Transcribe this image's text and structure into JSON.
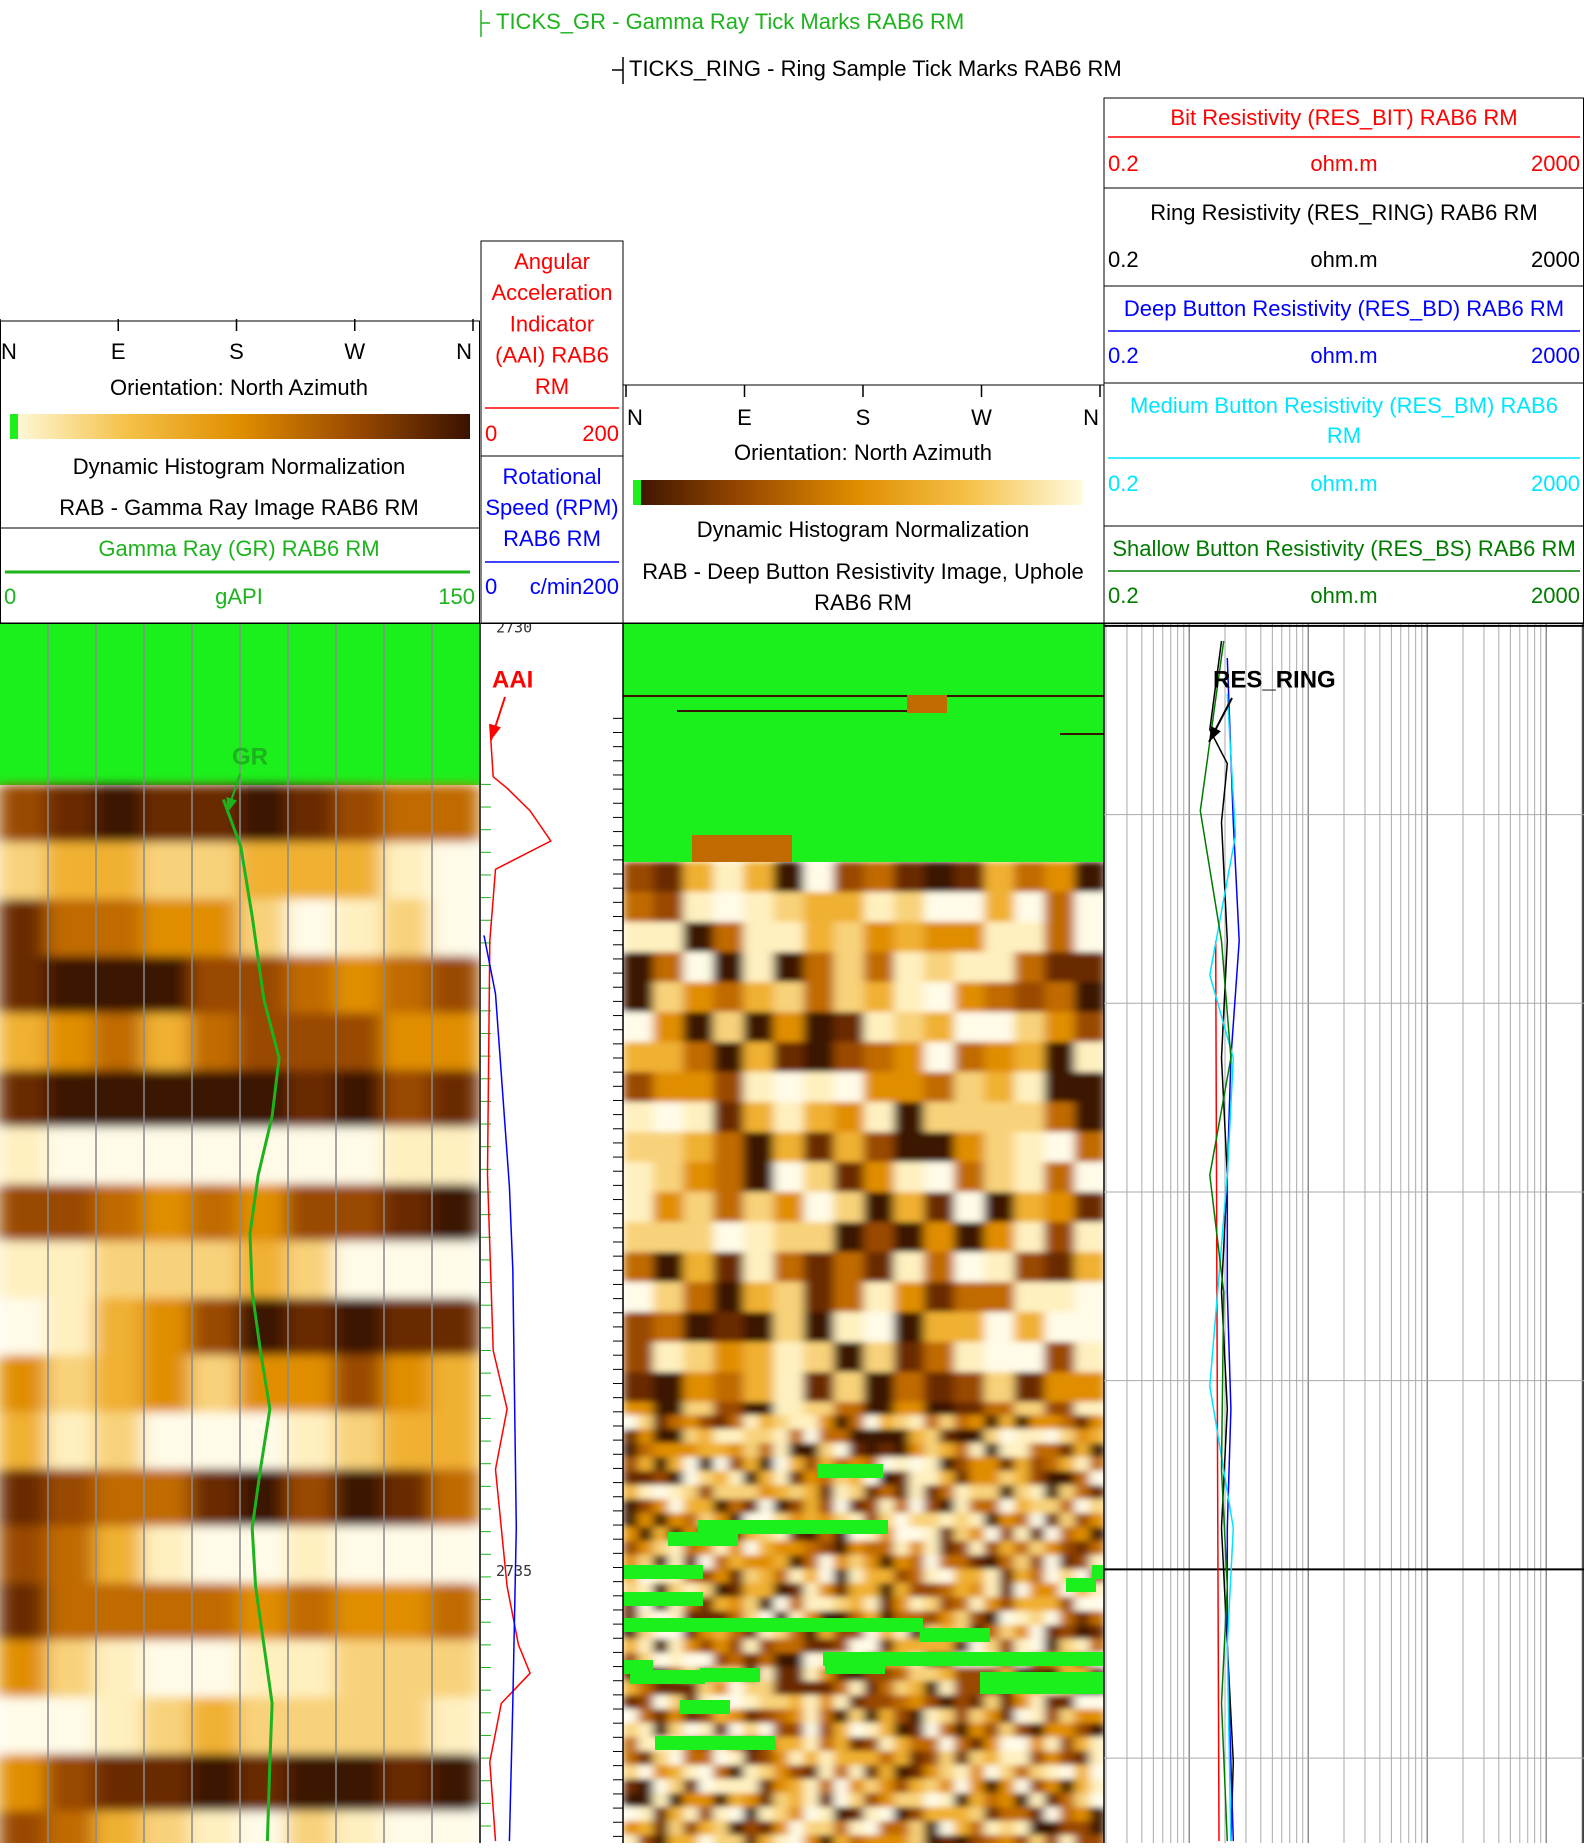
{
  "header": {
    "ticks_gr": "TICKS_GR - Gamma Ray Tick Marks RAB6 RM",
    "ticks_ring": "TICKS_RING - Ring Sample Tick Marks RAB6 RM"
  },
  "depth": {
    "lim": [
      2729.99,
      2736.45
    ],
    "ticks": [
      2730,
      2731,
      2732,
      2733,
      2734,
      2735,
      2736
    ],
    "labels": [
      2730,
      2735
    ]
  },
  "tracks": {
    "gr_image": {
      "compass": [
        "N",
        "E",
        "S",
        "W",
        "N"
      ],
      "orientation": "Orientation: North Azimuth",
      "normalization": "Dynamic Histogram Normalization",
      "title": "RAB - Gamma Ray Image RAB6 RM"
    },
    "gr": {
      "type": "line",
      "name": "Gamma Ray (GR) RAB6 RM",
      "unit": "gAPI",
      "scale": [
        0,
        150
      ],
      "color": "#1db31d",
      "annotation": "GR",
      "depths": [
        2730.92,
        2731.17,
        2731.54,
        2731.98,
        2732.29,
        2732.6,
        2732.91,
        2733.22,
        2733.53,
        2733.84,
        2734.15,
        2734.47,
        2734.78,
        2735.09,
        2735.4,
        2735.71,
        2736.02,
        2736.44
      ],
      "values": [
        69.9,
        75.4,
        79.0,
        82.7,
        87.5,
        85.3,
        80.9,
        78.3,
        79.0,
        81.6,
        84.6,
        81.6,
        79.0,
        80.1,
        82.7,
        85.3,
        84.6,
        83.8
      ]
    },
    "aai": {
      "type": "line",
      "lines": [
        "Angular",
        "Acceleration",
        "Indicator",
        "(AAI) RAB6",
        "RM"
      ],
      "scale": [
        0,
        200
      ],
      "color": "#ff0000",
      "annotation": "AAI",
      "depths": [
        2730.52,
        2730.8,
        2730.86,
        2730.98,
        2731.14,
        2731.29,
        2731.67,
        2732.91,
        2733.84,
        2734.15,
        2734.47,
        2734.78,
        2735.09,
        2735.4,
        2735.55,
        2735.71,
        2736.02,
        2736.44
      ],
      "values": [
        8.5,
        13.6,
        33.9,
        67.8,
        98.3,
        16.9,
        8.5,
        5.1,
        13.6,
        33.9,
        16.9,
        25.4,
        33.9,
        50.8,
        67.8,
        25.4,
        8.5,
        16.9
      ]
    },
    "rpm": {
      "type": "line",
      "lines": [
        "Rotational",
        "Speed (RPM)",
        "RAB6 RM"
      ],
      "unit": "c/min",
      "scale": [
        0,
        200
      ],
      "color": "#0000ff",
      "depths": [
        2731.64,
        2731.95,
        2732.97,
        2733.41,
        2734.78,
        2735.71,
        2736.44
      ],
      "values": [
        0,
        16.9,
        37.3,
        42.4,
        47.5,
        42.4,
        37.3
      ]
    },
    "res_image": {
      "compass": [
        "N",
        "E",
        "S",
        "W",
        "N"
      ],
      "orientation": "Orientation: North Azimuth",
      "normalization": "Dynamic Histogram Normalization",
      "title_lines": [
        "RAB - Deep Button Resistivity Image, Uphole",
        "RAB6 RM"
      ]
    },
    "resistivity": {
      "type": "line",
      "log_scale": true,
      "annotation": "RES_RING",
      "curves": [
        {
          "lines": [
            "Bit Resistivity (RES_BIT) RAB6 RM"
          ],
          "unit": "ohm.m",
          "scale": [
            0.2,
            2000
          ],
          "color": "#ff0000",
          "depths": [
            2731.67,
            2733.53,
            2736.44
          ],
          "values": [
            1.67,
            1.71,
            1.78
          ]
        },
        {
          "lines": [
            "Ring Resistivity (RES_RING) RAB6 RM"
          ],
          "unit": "ohm.m",
          "scale": [
            0.2,
            2000
          ],
          "color": "#000000",
          "depths": [
            2730.08,
            2730.55,
            2730.73,
            2731.04,
            2731.67,
            2732.29,
            2732.91,
            2733.53,
            2734.15,
            2734.78,
            2735.4,
            2736.02,
            2736.44
          ],
          "values": [
            1.87,
            1.49,
            2.09,
            1.87,
            2.09,
            1.87,
            2.09,
            1.87,
            2.09,
            1.87,
            2.09,
            2.35,
            2.24
          ]
        },
        {
          "lines": [
            "Deep Button Resistivity (RES_BD) RAB6 RM"
          ],
          "unit": "ohm.m",
          "scale": [
            0.2,
            2000
          ],
          "color": "#0000ff",
          "depths": [
            2730.17,
            2731.04,
            2731.67,
            2732.29,
            2732.91,
            2733.53,
            2734.15,
            2734.78,
            2735.4,
            2736.44
          ],
          "values": [
            2.09,
            2.35,
            2.63,
            2.24,
            2.09,
            2.09,
            2.24,
            2.09,
            2.09,
            2.35
          ]
        },
        {
          "lines": [
            "Medium Button Resistivity (RES_BM) RAB6",
            "RM"
          ],
          "unit": "ohm.m",
          "scale": [
            0.2,
            2000
          ],
          "color": "#00e5ff",
          "depths": [
            2730.36,
            2731.11,
            2731.85,
            2732.29,
            2732.91,
            2734.03,
            2734.78,
            2735.4,
            2736.44
          ],
          "values": [
            2.09,
            2.45,
            1.49,
            2.35,
            2.09,
            1.49,
            2.35,
            2.09,
            2.24
          ]
        },
        {
          "lines": [
            "Shallow Button Resistivity (RES_BS) RAB6 RM"
          ],
          "unit": "ohm.m",
          "scale": [
            0.2,
            2000
          ],
          "color": "#007a00",
          "depths": [
            2730.08,
            2730.98,
            2731.67,
            2732.29,
            2732.91,
            2733.53,
            2734.47,
            2735.09,
            2735.71,
            2736.44
          ],
          "values": [
            1.95,
            1.24,
            1.87,
            2.24,
            1.49,
            1.95,
            1.87,
            2.09,
            1.87,
            2.09
          ]
        }
      ]
    }
  }
}
